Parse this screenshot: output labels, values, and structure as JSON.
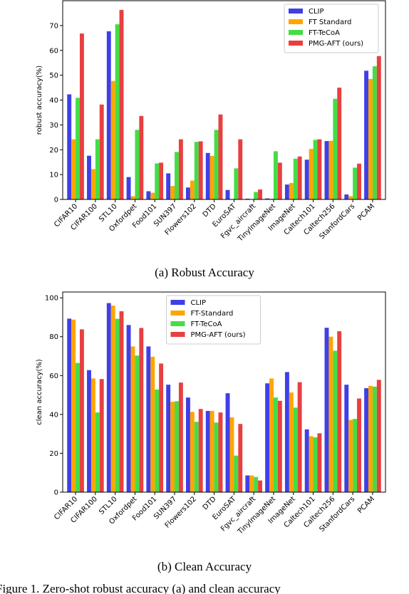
{
  "chart_data": [
    {
      "type": "bar",
      "ylabel": "robust accuracy(%)",
      "caption": "(a) Robust Accuracy",
      "legend": "upper right",
      "categories": [
        "CIFAR10",
        "CIFAR100",
        "STL10",
        "Oxfordpet",
        "Food101",
        "SUN397",
        "Flowers102",
        "DTD",
        "EuroSAT",
        "Fgvc_aircraft",
        "TinyImageNet",
        "ImageNet",
        "Caltech101",
        "Caltech256",
        "StanfordCars",
        "PCAM"
      ],
      "series": [
        {
          "name": "CLIP",
          "color": "#3f3fe8",
          "values": [
            42.3,
            17.6,
            67.7,
            9,
            3.3,
            10.5,
            4.8,
            18.7,
            3.8,
            0.3,
            0.4,
            6,
            16,
            23.5,
            2,
            51.8
          ]
        },
        {
          "name": "FT Standard",
          "color": "#ffa500",
          "values": [
            24.2,
            12.2,
            47.7,
            1.3,
            2.7,
            5.4,
            7.6,
            17.5,
            0.2,
            0,
            0.3,
            6.6,
            20.3,
            23.6,
            1.3,
            48.5
          ]
        },
        {
          "name": "FT-TeCoA",
          "color": "#44dd44",
          "values": [
            40.9,
            24.2,
            70.5,
            28,
            14.5,
            19.1,
            23.2,
            28,
            12.5,
            3,
            19.4,
            16.4,
            24,
            40.5,
            12.8,
            53.6
          ]
        },
        {
          "name": "PMG-AFT (ours)",
          "color": "#e84040",
          "values": [
            66.8,
            38.2,
            76.3,
            33.6,
            14.8,
            24.2,
            23.4,
            34.2,
            24.2,
            4,
            14.8,
            17.3,
            24.2,
            45,
            14.4,
            57.7
          ]
        }
      ],
      "ylim": [
        0,
        80
      ],
      "yticks": [
        0,
        10,
        20,
        30,
        40,
        50,
        60,
        70
      ]
    },
    {
      "type": "bar",
      "ylabel": "clean accuracy(%)",
      "caption": "(b) Clean Accuracy",
      "legend": "upper center",
      "categories": [
        "CIFAR10",
        "CIFAR100",
        "STL10",
        "Oxfordpet",
        "Food101",
        "SUN397",
        "Flowers102",
        "DTD",
        "EuroSAT",
        "Fgvc_aircraft",
        "TinyImageNet",
        "ImageNet",
        "Caltech101",
        "Caltech256",
        "StanfordCars",
        "PCAM"
      ],
      "series": [
        {
          "name": "CLIP",
          "color": "#3f3fe8",
          "values": [
            89.3,
            62.8,
            97.3,
            86,
            75,
            55.3,
            48.7,
            41.8,
            50.9,
            8.6,
            56,
            61.8,
            32.3,
            84.6,
            55.3,
            53.5
          ]
        },
        {
          "name": "FT-Standard",
          "color": "#ffa500",
          "values": [
            88.8,
            58.5,
            96,
            75,
            69.7,
            46.5,
            41.3,
            41.8,
            38.5,
            8.6,
            58.5,
            51.3,
            28.8,
            80,
            37.2,
            54.7
          ]
        },
        {
          "name": "FT-TeCoA",
          "color": "#44dd44",
          "values": [
            66.5,
            41,
            89.2,
            70.3,
            52.8,
            46.8,
            36.2,
            35.8,
            18.8,
            7.8,
            48.7,
            43.5,
            28.2,
            72.8,
            37.7,
            54.3
          ]
        },
        {
          "name": "PMG-AFT (ours)",
          "color": "#e84040",
          "values": [
            83.8,
            58.2,
            93.1,
            84.5,
            66.2,
            56.4,
            42.8,
            41,
            35.1,
            6,
            47,
            56.6,
            30.3,
            82.8,
            48.2,
            57.8
          ]
        }
      ],
      "ylim": [
        0,
        103
      ],
      "yticks": [
        0,
        20,
        40,
        60,
        80,
        100
      ]
    }
  ],
  "figure_caption": "Figure 1. Zero-shot robust accuracy (a) and clean accuracy"
}
